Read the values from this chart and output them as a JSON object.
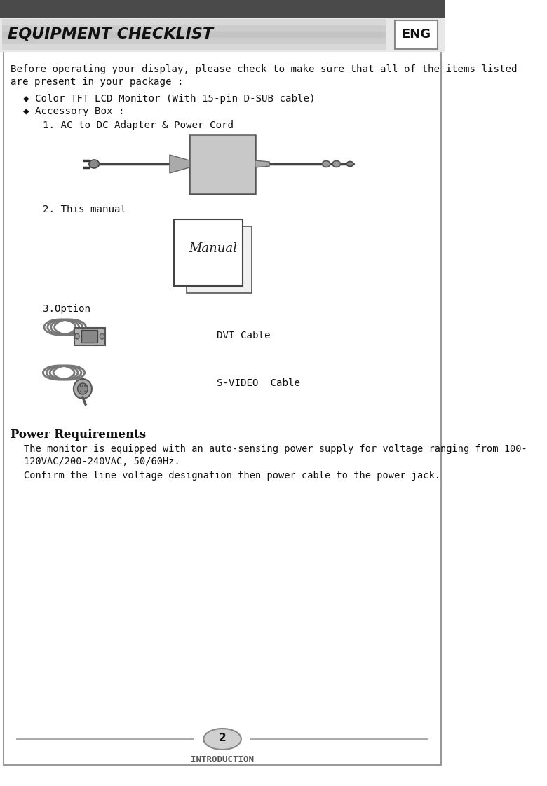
{
  "bg_color": "#ffffff",
  "header_bg": "#4a4a4a",
  "banner_bg": "#e0e0e0",
  "title_text": "EQUIPMENT CHECKLIST",
  "eng_text": "ENG",
  "intro_text1": "Before operating your display, please check to make sure that all of the items listed",
  "intro_text2": "are present in your package :",
  "bullet1": "◆ Color TFT LCD Monitor (With 15-pin D-SUB cable)",
  "bullet2": "◆ Accessory Box :",
  "item1": "1. AC to DC Adapter & Power Cord",
  "item2": "2. This manual",
  "item3": "3.Option",
  "dvi_label": "DVI Cable",
  "svideo_label": "S-VIDEO  Cable",
  "power_title": "Power Requirements",
  "power_text1": "The monitor is equipped with an auto-sensing power supply for voltage ranging from 100-",
  "power_text2": "120VAC/200-240VAC, 50/60Hz.",
  "power_text3": "Confirm the line voltage designation then power cable to the power jack.",
  "page_num": "2",
  "footer_text": "INTRODUCTION"
}
